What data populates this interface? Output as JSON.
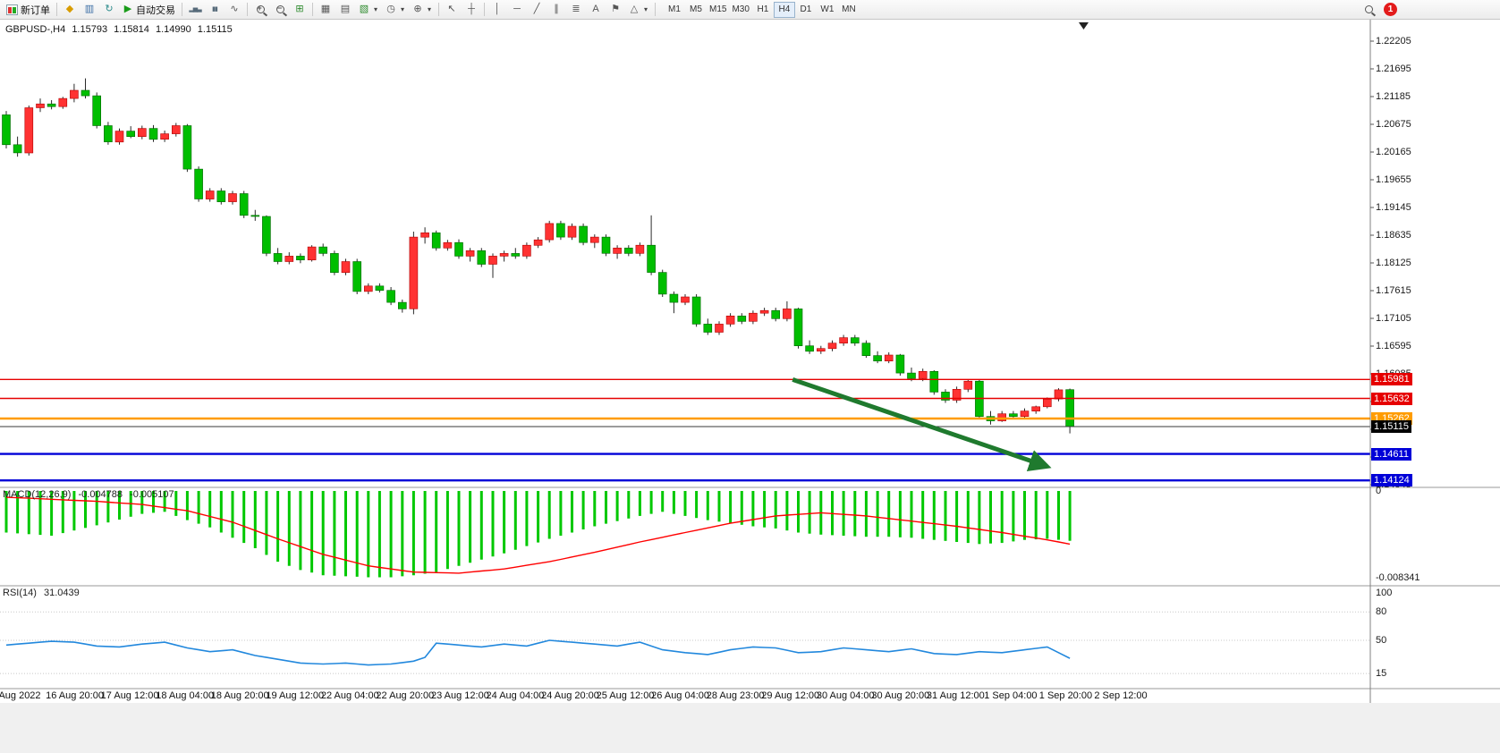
{
  "toolbar": {
    "new_order_label": "新订单",
    "autotrading_label": "自动交易",
    "timeframes": [
      "M1",
      "M5",
      "M15",
      "M30",
      "H1",
      "H4",
      "D1",
      "W1",
      "MN"
    ],
    "active_timeframe": "H4",
    "notification_count": "1"
  },
  "chart_header": {
    "symbol_period": "GBPUSD-,H4",
    "open": "1.15793",
    "high": "1.15814",
    "low": "1.14990",
    "close": "1.15115"
  },
  "indicators": {
    "macd": {
      "label": "MACD(12,26,9)",
      "value": "-0.004788",
      "signal_value": "-0.005107"
    },
    "rsi": {
      "label": "RSI(14)",
      "value": "31.0439"
    }
  },
  "axes": {
    "price_labels": [
      "1.22205",
      "1.21695",
      "1.21185",
      "1.20675",
      "1.20165",
      "1.19655",
      "1.19145",
      "1.18635",
      "1.18125",
      "1.17615",
      "1.17105",
      "1.16595",
      "1.16085",
      "1.15575",
      "1.15065",
      "1.14555",
      "1.14045"
    ],
    "price_badges": [
      {
        "text": "1.15981",
        "price": 1.15981,
        "bg": "#e60000",
        "fg": "#ffffff"
      },
      {
        "text": "1.15632",
        "price": 1.15632,
        "bg": "#e60000",
        "fg": "#ffffff"
      },
      {
        "text": "1.15262",
        "price": 1.15262,
        "bg": "#ff9c00",
        "fg": "#ffffff"
      },
      {
        "text": "1.15115",
        "price": 1.15115,
        "bg": "#000000",
        "fg": "#ffffff"
      },
      {
        "text": "1.14611",
        "price": 1.14611,
        "bg": "#0000d8",
        "fg": "#ffffff"
      },
      {
        "text": "1.14124",
        "price": 1.14124,
        "bg": "#0000d8",
        "fg": "#ffffff"
      }
    ],
    "macd_labels": [
      {
        "text": "0",
        "value": 0
      },
      {
        "text": "-0.008341",
        "value": -0.008341
      }
    ],
    "rsi_labels": [
      {
        "text": "100",
        "value": 100
      },
      {
        "text": "80",
        "value": 80
      },
      {
        "text": "50",
        "value": 50
      },
      {
        "text": "15",
        "value": 15
      }
    ],
    "time_labels": [
      "Aug 2022",
      "16 Aug 20:00",
      "17 Aug 12:00",
      "18 Aug 04:00",
      "18 Aug 20:00",
      "19 Aug 12:00",
      "22 Aug 04:00",
      "22 Aug 20:00",
      "23 Aug 12:00",
      "24 Aug 04:00",
      "24 Aug 20:00",
      "25 Aug 12:00",
      "26 Aug 04:00",
      "28 Aug 23:00",
      "29 Aug 12:00",
      "30 Aug 04:00",
      "30 Aug 20:00",
      "31 Aug 12:00",
      "1 Sep 04:00",
      "1 Sep 20:00",
      "2 Sep 12:00"
    ]
  },
  "icons": {
    "quotes_diamond": "◆",
    "market_watch": "▥",
    "refresh": "↻",
    "play": "▶",
    "bar_chart": "▂▅▃",
    "candle_chart": "▮▮",
    "line_chart": "∿",
    "grid": "⊞",
    "tile": "▦",
    "cascade": "▤",
    "template": "▧",
    "clock": "◷",
    "indicator": "⊕",
    "caret": "▾",
    "cursor": "↖",
    "crosshair": "┼",
    "vline": "│",
    "hline": "─",
    "trendline": "╱",
    "channel": "∥",
    "fibo": "≣",
    "text": "A",
    "flag": "⚑",
    "shapes": "△"
  },
  "chart_data": {
    "type": "candlestick",
    "symbol": "GBPUSD-",
    "timeframe": "H4",
    "price_range_visible": [
      1.1404,
      1.2245
    ],
    "colors": {
      "up": "#ff3232",
      "down": "#00be00",
      "wick": "#2a2a2a",
      "macd_hist": "#00c800",
      "macd_signal": "#ff0000",
      "rsi": "#2288dd"
    },
    "candles": [
      [
        1.2085,
        1.2092,
        1.2023,
        1.203
      ],
      [
        1.203,
        1.2045,
        1.2008,
        1.2015
      ],
      [
        1.2015,
        1.2102,
        1.201,
        1.2098
      ],
      [
        1.2098,
        1.2115,
        1.209,
        1.2105
      ],
      [
        1.2105,
        1.2112,
        1.2095,
        1.21
      ],
      [
        1.21,
        1.2118,
        1.2096,
        1.2115
      ],
      [
        1.2115,
        1.2142,
        1.2108,
        1.213
      ],
      [
        1.213,
        1.2152,
        1.2115,
        1.212
      ],
      [
        1.212,
        1.2126,
        1.206,
        1.2065
      ],
      [
        1.2065,
        1.2072,
        1.203,
        1.2035
      ],
      [
        1.2035,
        1.206,
        1.203,
        1.2055
      ],
      [
        1.2055,
        1.2064,
        1.2042,
        1.2045
      ],
      [
        1.2045,
        1.2065,
        1.204,
        1.206
      ],
      [
        1.206,
        1.2066,
        1.2035,
        1.204
      ],
      [
        1.204,
        1.2056,
        1.2035,
        1.205
      ],
      [
        1.205,
        1.207,
        1.2045,
        1.2065
      ],
      [
        1.2065,
        1.2068,
        1.198,
        1.1985
      ],
      [
        1.1985,
        1.199,
        1.1925,
        1.193
      ],
      [
        1.193,
        1.195,
        1.1925,
        1.1945
      ],
      [
        1.1945,
        1.195,
        1.192,
        1.1925
      ],
      [
        1.1925,
        1.1945,
        1.192,
        1.194
      ],
      [
        1.194,
        1.1945,
        1.1895,
        1.19
      ],
      [
        1.19,
        1.191,
        1.189,
        1.1898
      ],
      [
        1.1898,
        1.19,
        1.1825,
        1.183
      ],
      [
        1.183,
        1.184,
        1.181,
        1.1815
      ],
      [
        1.1815,
        1.1832,
        1.181,
        1.1825
      ],
      [
        1.1825,
        1.183,
        1.1812,
        1.1818
      ],
      [
        1.1818,
        1.1845,
        1.1815,
        1.1842
      ],
      [
        1.1842,
        1.1848,
        1.1825,
        1.183
      ],
      [
        1.183,
        1.1835,
        1.179,
        1.1795
      ],
      [
        1.1795,
        1.182,
        1.179,
        1.1815
      ],
      [
        1.1815,
        1.182,
        1.1755,
        1.176
      ],
      [
        1.176,
        1.1775,
        1.1755,
        1.177
      ],
      [
        1.177,
        1.1775,
        1.1758,
        1.1762
      ],
      [
        1.1762,
        1.1768,
        1.1735,
        1.174
      ],
      [
        1.174,
        1.1745,
        1.1721,
        1.1728
      ],
      [
        1.1728,
        1.187,
        1.1718,
        1.186
      ],
      [
        1.186,
        1.1878,
        1.1848,
        1.1868
      ],
      [
        1.1868,
        1.1872,
        1.1835,
        1.184
      ],
      [
        1.184,
        1.1855,
        1.1835,
        1.185
      ],
      [
        1.185,
        1.1856,
        1.182,
        1.1825
      ],
      [
        1.1825,
        1.184,
        1.1815,
        1.1835
      ],
      [
        1.1835,
        1.184,
        1.1805,
        1.181
      ],
      [
        1.181,
        1.183,
        1.1785,
        1.1825
      ],
      [
        1.1825,
        1.1835,
        1.1815,
        1.183
      ],
      [
        1.183,
        1.184,
        1.182,
        1.1825
      ],
      [
        1.1825,
        1.185,
        1.182,
        1.1845
      ],
      [
        1.1845,
        1.186,
        1.184,
        1.1855
      ],
      [
        1.1855,
        1.189,
        1.185,
        1.1885
      ],
      [
        1.1885,
        1.189,
        1.1855,
        1.186
      ],
      [
        1.186,
        1.1885,
        1.1855,
        1.188
      ],
      [
        1.188,
        1.1885,
        1.1845,
        1.185
      ],
      [
        1.185,
        1.1865,
        1.184,
        1.186
      ],
      [
        1.186,
        1.1865,
        1.1825,
        1.183
      ],
      [
        1.183,
        1.1845,
        1.182,
        1.184
      ],
      [
        1.184,
        1.1845,
        1.1825,
        1.183
      ],
      [
        1.183,
        1.185,
        1.1825,
        1.1845
      ],
      [
        1.1845,
        1.19,
        1.179,
        1.1795
      ],
      [
        1.1795,
        1.18,
        1.175,
        1.1755
      ],
      [
        1.1755,
        1.176,
        1.172,
        1.174
      ],
      [
        1.174,
        1.1755,
        1.1735,
        1.175
      ],
      [
        1.175,
        1.1755,
        1.1695,
        1.17
      ],
      [
        1.17,
        1.171,
        1.168,
        1.1685
      ],
      [
        1.1685,
        1.1705,
        1.168,
        1.17
      ],
      [
        1.17,
        1.172,
        1.1695,
        1.1715
      ],
      [
        1.1715,
        1.172,
        1.17,
        1.1705
      ],
      [
        1.1705,
        1.1725,
        1.17,
        1.172
      ],
      [
        1.172,
        1.173,
        1.1715,
        1.1725
      ],
      [
        1.1725,
        1.173,
        1.1705,
        1.171
      ],
      [
        1.171,
        1.1742,
        1.1705,
        1.1728
      ],
      [
        1.1728,
        1.173,
        1.1655,
        1.166
      ],
      [
        1.166,
        1.167,
        1.1645,
        1.165
      ],
      [
        1.165,
        1.166,
        1.1645,
        1.1655
      ],
      [
        1.1655,
        1.167,
        1.165,
        1.1665
      ],
      [
        1.1665,
        1.168,
        1.166,
        1.1675
      ],
      [
        1.1675,
        1.168,
        1.166,
        1.1665
      ],
      [
        1.1665,
        1.167,
        1.1638,
        1.1642
      ],
      [
        1.1642,
        1.165,
        1.1628,
        1.1632
      ],
      [
        1.1632,
        1.1648,
        1.1628,
        1.1643
      ],
      [
        1.1643,
        1.1645,
        1.1605,
        1.161
      ],
      [
        1.161,
        1.162,
        1.1595,
        1.16
      ],
      [
        1.16,
        1.1618,
        1.1595,
        1.1613
      ],
      [
        1.1613,
        1.1615,
        1.157,
        1.1575
      ],
      [
        1.1575,
        1.158,
        1.1555,
        1.156
      ],
      [
        1.156,
        1.1585,
        1.1555,
        1.158
      ],
      [
        1.158,
        1.1598,
        1.1575,
        1.1595
      ],
      [
        1.1595,
        1.1598,
        1.1525,
        1.153
      ],
      [
        1.153,
        1.154,
        1.1515,
        1.1522
      ],
      [
        1.1522,
        1.154,
        1.152,
        1.1535
      ],
      [
        1.1535,
        1.154,
        1.1525,
        1.153
      ],
      [
        1.153,
        1.1545,
        1.1525,
        1.154
      ],
      [
        1.154,
        1.155,
        1.1535,
        1.1548
      ],
      [
        1.1548,
        1.1565,
        1.1545,
        1.1562
      ],
      [
        1.1562,
        1.1582,
        1.1558,
        1.1579
      ],
      [
        1.15793,
        1.15814,
        1.1499,
        1.15115
      ]
    ],
    "hlines": [
      {
        "name": "resistance-line-1",
        "price": 1.15981,
        "color": "#e60000",
        "width": 1.4
      },
      {
        "name": "resistance-line-2",
        "price": 1.15632,
        "color": "#e60000",
        "width": 1.4
      },
      {
        "name": "orange-support-line",
        "price": 1.15262,
        "color": "#ff9c00",
        "width": 2.6
      },
      {
        "name": "current-price-line",
        "price": 1.15115,
        "color": "#3a3a3a",
        "width": 1,
        "style": "solid"
      },
      {
        "name": "blue-support-line-1",
        "price": 1.14611,
        "color": "#0000d8",
        "width": 2.4
      },
      {
        "name": "blue-support-line-2",
        "price": 1.14124,
        "color": "#0000d8",
        "width": 2.4
      }
    ],
    "arrow": {
      "from_index": 69.5,
      "from_price": 1.1598,
      "to_index": 92,
      "to_price": 1.1438,
      "color": "#1f7a2e"
    },
    "macd": {
      "params": "12,26,9",
      "range": [
        -0.008341,
        0
      ],
      "hist_anchors": [
        [
          0,
          -0.004
        ],
        [
          4,
          -0.0043
        ],
        [
          8,
          -0.0033
        ],
        [
          12,
          -0.0022
        ],
        [
          14,
          -0.002
        ],
        [
          16,
          -0.0028
        ],
        [
          18,
          -0.0035
        ],
        [
          20,
          -0.0045
        ],
        [
          22,
          -0.0055
        ],
        [
          24,
          -0.0068
        ],
        [
          26,
          -0.0076
        ],
        [
          28,
          -0.0081
        ],
        [
          32,
          -0.0083
        ],
        [
          34,
          -0.0083
        ],
        [
          36,
          -0.0081
        ],
        [
          38,
          -0.0078
        ],
        [
          40,
          -0.0072
        ],
        [
          42,
          -0.0066
        ],
        [
          44,
          -0.006
        ],
        [
          46,
          -0.0053
        ],
        [
          48,
          -0.0046
        ],
        [
          50,
          -0.004
        ],
        [
          52,
          -0.0034
        ],
        [
          54,
          -0.0029
        ],
        [
          56,
          -0.0024
        ],
        [
          58,
          -0.002
        ],
        [
          60,
          -0.0024
        ],
        [
          62,
          -0.0028
        ],
        [
          64,
          -0.0031
        ],
        [
          66,
          -0.0034
        ],
        [
          68,
          -0.0036
        ],
        [
          70,
          -0.004
        ],
        [
          72,
          -0.0042
        ],
        [
          74,
          -0.0043
        ],
        [
          76,
          -0.0044
        ],
        [
          78,
          -0.0044
        ],
        [
          80,
          -0.0045
        ],
        [
          82,
          -0.0047
        ],
        [
          84,
          -0.0049
        ],
        [
          86,
          -0.0051
        ],
        [
          88,
          -0.005
        ],
        [
          90,
          -0.0047
        ],
        [
          92,
          -0.0046
        ],
        [
          94,
          -0.004788
        ]
      ],
      "signal_anchors": [
        [
          0,
          -0.0006
        ],
        [
          4,
          -0.0008
        ],
        [
          8,
          -0.001
        ],
        [
          12,
          -0.0013
        ],
        [
          16,
          -0.0019
        ],
        [
          20,
          -0.003
        ],
        [
          24,
          -0.0046
        ],
        [
          28,
          -0.0061
        ],
        [
          32,
          -0.0072
        ],
        [
          36,
          -0.0078
        ],
        [
          40,
          -0.0079
        ],
        [
          44,
          -0.0075
        ],
        [
          48,
          -0.0068
        ],
        [
          52,
          -0.0059
        ],
        [
          56,
          -0.0049
        ],
        [
          60,
          -0.004
        ],
        [
          64,
          -0.0031
        ],
        [
          68,
          -0.0024
        ],
        [
          72,
          -0.0021
        ],
        [
          76,
          -0.0024
        ],
        [
          80,
          -0.0029
        ],
        [
          84,
          -0.0034
        ],
        [
          88,
          -0.004
        ],
        [
          92,
          -0.0047
        ],
        [
          94,
          -0.005107
        ]
      ]
    },
    "rsi": {
      "period": 14,
      "value": 31.0439,
      "levels": [
        80,
        50,
        15
      ],
      "range": [
        0,
        100
      ],
      "anchors": [
        [
          0,
          45
        ],
        [
          2,
          47
        ],
        [
          4,
          49
        ],
        [
          6,
          48
        ],
        [
          8,
          44
        ],
        [
          10,
          43
        ],
        [
          12,
          46
        ],
        [
          14,
          48
        ],
        [
          16,
          42
        ],
        [
          18,
          38
        ],
        [
          20,
          40
        ],
        [
          22,
          34
        ],
        [
          24,
          30
        ],
        [
          26,
          26
        ],
        [
          28,
          25
        ],
        [
          30,
          26
        ],
        [
          32,
          24
        ],
        [
          34,
          25
        ],
        [
          36,
          28
        ],
        [
          37,
          32
        ],
        [
          38,
          47
        ],
        [
          40,
          45
        ],
        [
          42,
          43
        ],
        [
          44,
          46
        ],
        [
          46,
          44
        ],
        [
          48,
          50
        ],
        [
          50,
          48
        ],
        [
          52,
          46
        ],
        [
          54,
          44
        ],
        [
          56,
          48
        ],
        [
          58,
          40
        ],
        [
          60,
          37
        ],
        [
          62,
          35
        ],
        [
          64,
          40
        ],
        [
          66,
          43
        ],
        [
          68,
          42
        ],
        [
          70,
          37
        ],
        [
          72,
          38
        ],
        [
          74,
          42
        ],
        [
          76,
          40
        ],
        [
          78,
          38
        ],
        [
          80,
          41
        ],
        [
          82,
          36
        ],
        [
          84,
          35
        ],
        [
          86,
          38
        ],
        [
          88,
          37
        ],
        [
          90,
          40
        ],
        [
          92,
          43
        ],
        [
          94,
          31.0439
        ]
      ]
    }
  }
}
